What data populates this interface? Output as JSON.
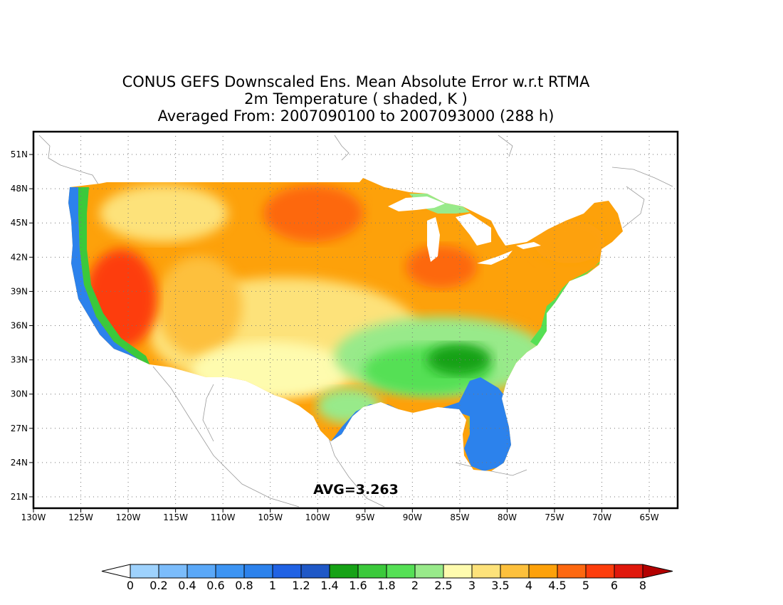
{
  "title": {
    "line1": "CONUS GEFS Downscaled Ens. Mean Absolute Error w.r.t RTMA",
    "line2": "2m Temperature ( shaded, K )",
    "line3": "Averaged From: 2007090100 to 2007093000 (288 h)"
  },
  "map": {
    "lat_labels": [
      "51N",
      "48N",
      "45N",
      "42N",
      "39N",
      "36N",
      "33N",
      "30N",
      "27N",
      "24N",
      "21N"
    ],
    "lon_labels": [
      "130W",
      "125W",
      "120W",
      "115W",
      "110W",
      "105W",
      "100W",
      "95W",
      "90W",
      "85W",
      "80W",
      "75W",
      "70W",
      "65W"
    ],
    "lon_range": [
      -130,
      -62
    ],
    "lat_range": [
      20,
      53
    ],
    "grid": "dotted",
    "average_label": "AVG=3.263"
  },
  "colorbar": {
    "labels": [
      "0",
      "0.2",
      "0.4",
      "0.6",
      "0.8",
      "1",
      "1.2",
      "1.4",
      "1.6",
      "1.8",
      "2",
      "2.5",
      "3",
      "3.5",
      "4",
      "4.5",
      "5",
      "6",
      "8"
    ],
    "colors": [
      "#9ed2fd",
      "#7bbcfb",
      "#5aa8f8",
      "#3c94f3",
      "#2c82ec",
      "#2062e4",
      "#1f58c7",
      "#16a216",
      "#3bc93b",
      "#55e055",
      "#98ea8a",
      "#fefbae",
      "#fde27a",
      "#fdc03c",
      "#fda10a",
      "#fd6810",
      "#fd3d0c",
      "#e0180c"
    ],
    "under_color": "#ffffff",
    "over_color": "#b30000"
  }
}
